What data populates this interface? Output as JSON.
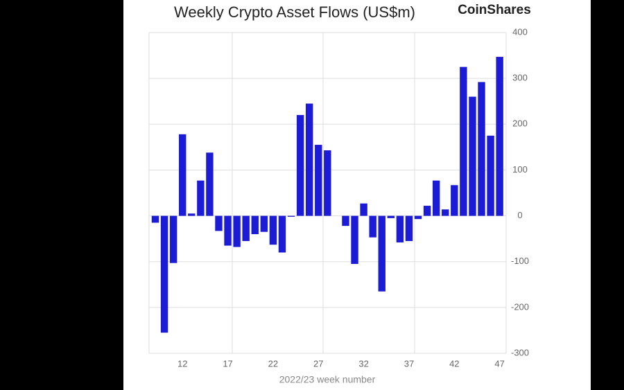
{
  "chart_data": {
    "type": "bar",
    "title": "Weekly Crypto Asset Flows (US$m)",
    "brand": "CoinShares",
    "x_label": "2022/23 week number",
    "categories": [
      null,
      null,
      null,
      "12",
      null,
      null,
      null,
      null,
      "17",
      null,
      null,
      null,
      null,
      "22",
      null,
      null,
      null,
      null,
      "27",
      null,
      null,
      null,
      null,
      "32",
      null,
      null,
      null,
      null,
      "37",
      null,
      null,
      null,
      null,
      "42",
      null,
      null,
      null,
      null,
      "47"
    ],
    "values": [
      -15,
      -255,
      -103,
      178,
      5,
      77,
      138,
      -33,
      -65,
      -68,
      -55,
      -40,
      -35,
      -63,
      -80,
      -2,
      220,
      245,
      155,
      143,
      0,
      -22,
      -105,
      27,
      -47,
      -165,
      -5,
      -58,
      -55,
      -7,
      22,
      77,
      14,
      67,
      325,
      260,
      292,
      175,
      347
    ],
    "color": "#1c1cd6",
    "ylim": [
      -300,
      400
    ],
    "yticks": [
      -300,
      -200,
      -100,
      0,
      100,
      200,
      300,
      400
    ],
    "grid": true
  }
}
